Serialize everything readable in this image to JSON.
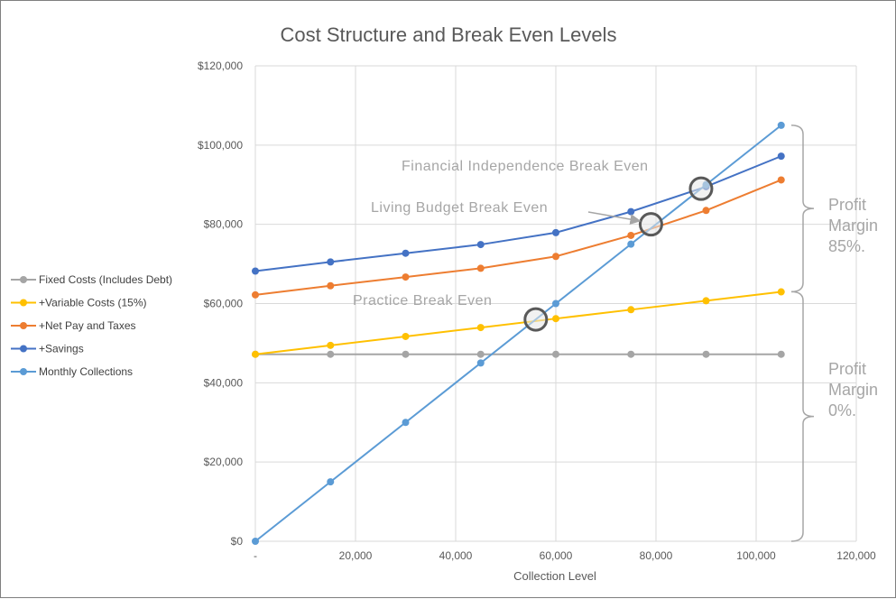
{
  "chart_data": {
    "type": "line",
    "title": "Cost Structure and Break Even Levels",
    "xlabel": "Collection Level",
    "ylabel": "",
    "x": [
      0,
      15000,
      30000,
      45000,
      60000,
      75000,
      90000,
      105000
    ],
    "xlim": [
      0,
      120000
    ],
    "ylim": [
      0,
      120000
    ],
    "x_ticks": [
      0,
      20000,
      40000,
      60000,
      80000,
      100000,
      120000
    ],
    "x_tick_labels": [
      "-",
      "20,000",
      "40,000",
      "60,000",
      "80,000",
      "100,000",
      "120,000"
    ],
    "y_ticks": [
      0,
      20000,
      40000,
      60000,
      80000,
      100000,
      120000
    ],
    "y_tick_labels": [
      "$0",
      "$20,000",
      "$40,000",
      "$60,000",
      "$80,000",
      "$100,000",
      "$120,000"
    ],
    "grid": true,
    "legend_position": "left",
    "series": [
      {
        "name": "Fixed Costs (Includes Debt)",
        "color": "#a5a5a5",
        "values": [
          47200,
          47200,
          47200,
          47200,
          47200,
          47200,
          47200,
          47200
        ]
      },
      {
        "name": "+Variable Costs (15%)",
        "color": "#ffc000",
        "values": [
          47200,
          49450,
          51700,
          53950,
          56200,
          58450,
          60700,
          62950
        ]
      },
      {
        "name": "+Net Pay and Taxes",
        "color": "#ed7d31",
        "values": [
          62200,
          64500,
          66700,
          68900,
          71900,
          77200,
          83500,
          91200
        ]
      },
      {
        "name": "+Savings",
        "color": "#4472c4",
        "values": [
          68200,
          70500,
          72700,
          74900,
          77900,
          83200,
          89500,
          97200
        ]
      },
      {
        "name": "Monthly Collections",
        "color": "#5b9bd5",
        "values": [
          0,
          15000,
          30000,
          45000,
          60000,
          75000,
          90000,
          105000
        ]
      }
    ],
    "annotations": [
      {
        "text": "Financial Independence Break Even",
        "x": 89000,
        "y": 89000
      },
      {
        "text": "Living Budget Break Even",
        "x": 79000,
        "y": 80000
      },
      {
        "text": "Practice Break Even",
        "x": 56000,
        "y": 56000
      }
    ],
    "brackets": [
      {
        "lines": [
          "Profit",
          "Margin",
          "85%."
        ],
        "y_from": 63000,
        "y_to": 105000
      },
      {
        "lines": [
          "Profit",
          "Margin",
          "0%."
        ],
        "y_from": 0,
        "y_to": 63000
      }
    ]
  }
}
